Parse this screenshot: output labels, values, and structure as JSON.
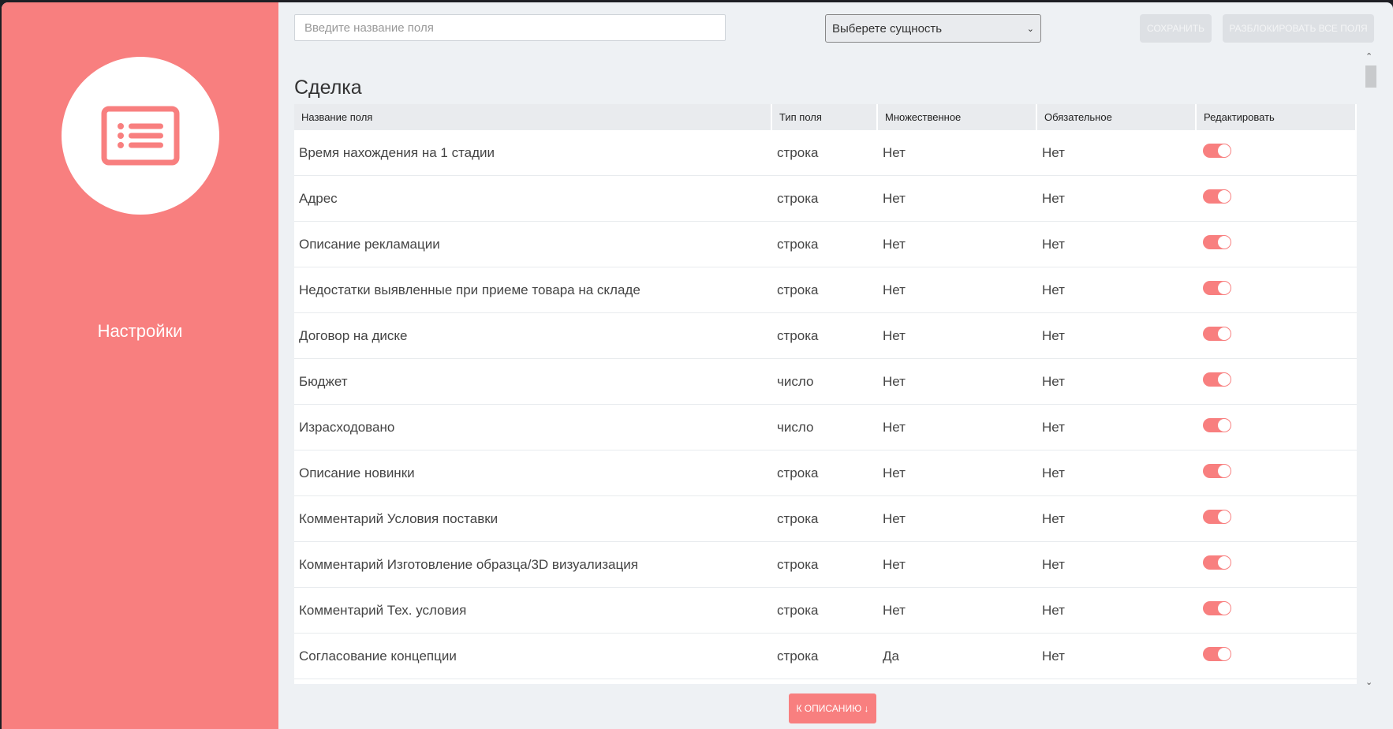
{
  "sidebar": {
    "label": "Настройки",
    "icon": "list-icon",
    "color": "#f87f7f"
  },
  "toolbar": {
    "search_placeholder": "Введите название поля",
    "select_value": "Выберете сущность",
    "save": "СОХРАНИТЬ",
    "unblock": "РАЗБЛОКИРОВАТЬ ВСЕ ПОЛЯ"
  },
  "section_title": "Сделка",
  "table": {
    "headers": [
      "Название поля",
      "Тип поля",
      "Множественное",
      "Обязательное",
      "Редактировать"
    ],
    "rows": [
      {
        "name": "Время нахождения на 1 стадии",
        "type": "строка",
        "multiple": "Нет",
        "required": "Нет",
        "editable": true
      },
      {
        "name": "Адрес",
        "type": "строка",
        "multiple": "Нет",
        "required": "Нет",
        "editable": true
      },
      {
        "name": "Описание рекламации",
        "type": "строка",
        "multiple": "Нет",
        "required": "Нет",
        "editable": true
      },
      {
        "name": "Недостатки выявленные при приеме товара на складе",
        "type": "строка",
        "multiple": "Нет",
        "required": "Нет",
        "editable": true
      },
      {
        "name": "Договор на диске",
        "type": "строка",
        "multiple": "Нет",
        "required": "Нет",
        "editable": true
      },
      {
        "name": "Бюджет",
        "type": "число",
        "multiple": "Нет",
        "required": "Нет",
        "editable": true
      },
      {
        "name": "Израсходовано",
        "type": "число",
        "multiple": "Нет",
        "required": "Нет",
        "editable": true
      },
      {
        "name": "Описание новинки",
        "type": "строка",
        "multiple": "Нет",
        "required": "Нет",
        "editable": true
      },
      {
        "name": "Комментарий Условия поставки",
        "type": "строка",
        "multiple": "Нет",
        "required": "Нет",
        "editable": true
      },
      {
        "name": "Комментарий Изготовление образца/3D визуализация",
        "type": "строка",
        "multiple": "Нет",
        "required": "Нет",
        "editable": true
      },
      {
        "name": "Комментарий Тех. условия",
        "type": "строка",
        "multiple": "Нет",
        "required": "Нет",
        "editable": true
      },
      {
        "name": "Согласование концепции",
        "type": "строка",
        "multiple": "Да",
        "required": "Нет",
        "editable": true
      }
    ]
  },
  "bottom_button": "К ОПИСАНИЮ ↓"
}
